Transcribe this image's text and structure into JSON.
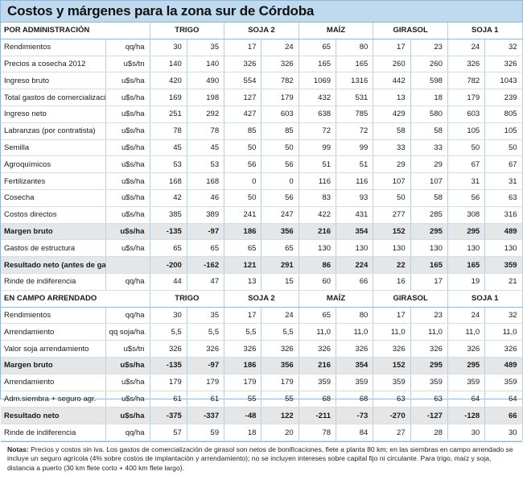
{
  "title": "Costos y márgenes para la zona sur de Córdoba",
  "section1": {
    "heading": "POR ADMINISTRACIÓN",
    "crops": [
      "TRIGO",
      "SOJA 2",
      "MAÍZ",
      "GIRASOL",
      "SOJA 1"
    ],
    "rows": [
      {
        "label": "Rendimientos",
        "unit": "qq/ha",
        "values": [
          "30",
          "35",
          "17",
          "24",
          "65",
          "80",
          "17",
          "23",
          "24",
          "32"
        ],
        "bold": false
      },
      {
        "label": "Precios a cosecha 2012",
        "unit": "u$s/tn",
        "values": [
          "140",
          "140",
          "326",
          "326",
          "165",
          "165",
          "260",
          "260",
          "326",
          "326"
        ],
        "bold": false
      },
      {
        "label": "Ingreso bruto",
        "unit": "u$s/ha",
        "values": [
          "420",
          "490",
          "554",
          "782",
          "1069",
          "1316",
          "442",
          "598",
          "782",
          "1043"
        ],
        "bold": false
      },
      {
        "label": "Total gastos de comercialización",
        "unit": "u$s/ha",
        "values": [
          "169",
          "198",
          "127",
          "179",
          "432",
          "531",
          "13",
          "18",
          "179",
          "239"
        ],
        "bold": false
      },
      {
        "label": "Ingreso neto",
        "unit": "u$s/ha",
        "values": [
          "251",
          "292",
          "427",
          "603",
          "638",
          "785",
          "429",
          "580",
          "603",
          "805"
        ],
        "bold": false
      },
      {
        "label": "Labranzas (por contratista)",
        "unit": "u$s/ha",
        "values": [
          "78",
          "78",
          "85",
          "85",
          "72",
          "72",
          "58",
          "58",
          "105",
          "105"
        ],
        "bold": false
      },
      {
        "label": "Semilla",
        "unit": "u$s/ha",
        "values": [
          "45",
          "45",
          "50",
          "50",
          "99",
          "99",
          "33",
          "33",
          "50",
          "50"
        ],
        "bold": false
      },
      {
        "label": "Agroquímicos",
        "unit": "u$s/ha",
        "values": [
          "53",
          "53",
          "56",
          "56",
          "51",
          "51",
          "29",
          "29",
          "67",
          "67"
        ],
        "bold": false
      },
      {
        "label": "Fertilizantes",
        "unit": "u$s/ha",
        "values": [
          "168",
          "168",
          "0",
          "0",
          "116",
          "116",
          "107",
          "107",
          "31",
          "31"
        ],
        "bold": false
      },
      {
        "label": "Cosecha",
        "unit": "u$s/ha",
        "values": [
          "42",
          "46",
          "50",
          "56",
          "83",
          "93",
          "50",
          "58",
          "56",
          "63"
        ],
        "bold": false
      },
      {
        "label": "Costos directos",
        "unit": "u$s/ha",
        "values": [
          "385",
          "389",
          "241",
          "247",
          "422",
          "431",
          "277",
          "285",
          "308",
          "316"
        ],
        "bold": false
      },
      {
        "label": "Margen bruto",
        "unit": "u$s/ha",
        "values": [
          "-135",
          "-97",
          "186",
          "356",
          "216",
          "354",
          "152",
          "295",
          "295",
          "489"
        ],
        "bold": true
      },
      {
        "label": "Gastos de estructura",
        "unit": "u$s/ha",
        "values": [
          "65",
          "65",
          "65",
          "65",
          "130",
          "130",
          "130",
          "130",
          "130",
          "130"
        ],
        "bold": false
      },
      {
        "label": "Resultado neto (antes de gan.)",
        "unit": "",
        "values": [
          "-200",
          "-162",
          "121",
          "291",
          "86",
          "224",
          "22",
          "165",
          "165",
          "359"
        ],
        "bold": true
      },
      {
        "label": "Rinde de indiferencia",
        "unit": "qq/ha",
        "values": [
          "44",
          "47",
          "13",
          "15",
          "60",
          "66",
          "16",
          "17",
          "19",
          "21"
        ],
        "bold": false
      }
    ]
  },
  "section2": {
    "heading": "EN CAMPO ARRENDADO",
    "crops": [
      "TRIGO",
      "SOJA 2",
      "MAÍZ",
      "GIRASOL",
      "SOJA 1"
    ],
    "rows": [
      {
        "label": "Rendimientos",
        "unit": "qq/ha",
        "values": [
          "30",
          "35",
          "17",
          "24",
          "65",
          "80",
          "17",
          "23",
          "24",
          "32"
        ],
        "bold": false
      },
      {
        "label": "Arrendamiento",
        "unit": "qq soja/ha",
        "values": [
          "5,5",
          "5,5",
          "5,5",
          "5,5",
          "11,0",
          "11,0",
          "11,0",
          "11,0",
          "11,0",
          "11,0"
        ],
        "bold": false
      },
      {
        "label": "Valor soja arrendamiento",
        "unit": "u$s/tn",
        "values": [
          "326",
          "326",
          "326",
          "326",
          "326",
          "326",
          "326",
          "326",
          "326",
          "326"
        ],
        "bold": false
      },
      {
        "label": "Margen bruto",
        "unit": "u$s/ha",
        "values": [
          "-135",
          "-97",
          "186",
          "356",
          "216",
          "354",
          "152",
          "295",
          "295",
          "489"
        ],
        "bold": true
      },
      {
        "label": "Arrendamiento",
        "unit": "u$s/ha",
        "values": [
          "179",
          "179",
          "179",
          "179",
          "359",
          "359",
          "359",
          "359",
          "359",
          "359"
        ],
        "bold": false
      },
      {
        "label": "Adm.siembra + seguro agr.",
        "unit": "u$s/ha",
        "values": [
          "61",
          "61",
          "55",
          "55",
          "68",
          "68",
          "63",
          "63",
          "64",
          "64"
        ],
        "bold": false
      },
      {
        "label": "Resultado neto",
        "unit": "u$s/ha",
        "values": [
          "-375",
          "-337",
          "-48",
          "122",
          "-211",
          "-73",
          "-270",
          "-127",
          "-128",
          "66"
        ],
        "bold": true
      },
      {
        "label": "Rinde de indiferencia",
        "unit": "qq/ha",
        "values": [
          "57",
          "59",
          "18",
          "20",
          "78",
          "84",
          "27",
          "28",
          "30",
          "30"
        ],
        "bold": false
      }
    ]
  },
  "notes": {
    "prefix": "Notas:",
    "text": "Precios y costos sin iva. Los gastos de comercialización de girasol son netos de bonificaciones, flete a planta 80 km; en las siembras en campo arrendado se incluye un seguro agrícola (4% sobre costos de implantación y arrendamiento); no se incluyen intereses sobre capital fijo ni circulante. Para trigo, maíz y soja, distancia a puerto (30 km flete corto + 400 km flete largo)."
  }
}
